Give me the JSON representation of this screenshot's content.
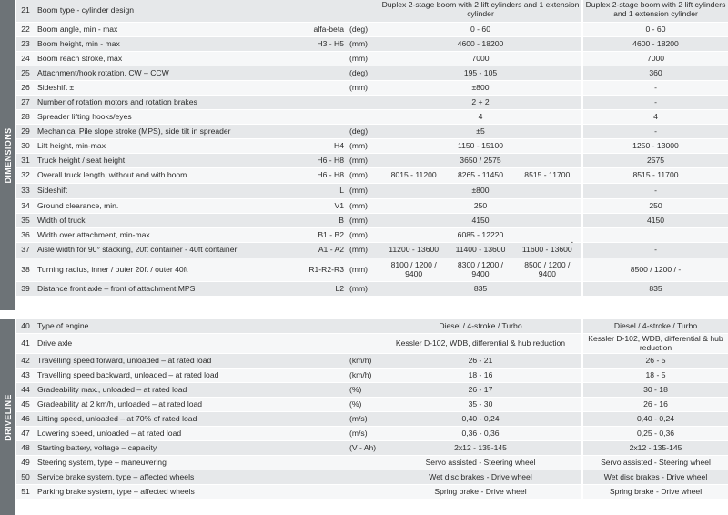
{
  "sections": [
    {
      "title": "DIMENSIONS",
      "rows": [
        {
          "num": "21",
          "label": "Boom type - cylinder design",
          "code": "",
          "unit": "",
          "v1": [
            "Duplex 2-stage boom with 2 lift cylinders and 1 extension cylinder"
          ],
          "v2": "Duplex 2-stage boom with 2 lift cylinders and 1 extension cylinder"
        },
        {
          "num": "22",
          "label": "Boom angle, min - max",
          "code": "alfa-beta",
          "unit": "(deg)",
          "v1": [
            "0 - 60"
          ],
          "v2": "0 - 60"
        },
        {
          "num": "23",
          "label": "Boom height, min - max",
          "code": "H3 - H5",
          "unit": "(mm)",
          "v1": [
            "4600 - 18200"
          ],
          "v2": "4600 - 18200"
        },
        {
          "num": "24",
          "label": "Boom reach stroke, max",
          "code": "",
          "unit": "(mm)",
          "v1": [
            "7000"
          ],
          "v2": "7000"
        },
        {
          "num": "25",
          "label": "Attachment/hook rotation, CW – CCW",
          "code": "",
          "unit": "(deg)",
          "v1": [
            "195 - 105"
          ],
          "v2": "360"
        },
        {
          "num": "26",
          "label": "Sideshift ±",
          "code": "",
          "unit": "(mm)",
          "v1": [
            "±800"
          ],
          "v2": "-"
        },
        {
          "num": "27",
          "label": "Number of rotation motors and rotation brakes",
          "code": "",
          "unit": "",
          "v1": [
            "2 + 2"
          ],
          "v2": "-"
        },
        {
          "num": "28",
          "label": "Spreader lifting hooks/eyes",
          "code": "",
          "unit": "",
          "v1": [
            "4"
          ],
          "v2": "4"
        },
        {
          "num": "29",
          "label": "Mechanical Pile slope stroke (MPS), side tilt in spreader",
          "code": "",
          "unit": "(deg)",
          "v1": [
            "±5"
          ],
          "v2": "-"
        },
        {
          "num": "30",
          "label": "Lift height, min-max",
          "code": "H4",
          "unit": "(mm)",
          "v1": [
            "1150 - 15100"
          ],
          "v2": "1250 - 13000"
        },
        {
          "num": "31",
          "label": "Truck height / seat height",
          "code": "H6 - H8",
          "unit": "(mm)",
          "v1": [
            "3650 / 2575"
          ],
          "v2": "2575"
        },
        {
          "num": "32",
          "label": "Overall truck length, without and with boom",
          "code": "H6 - H8",
          "unit": "(mm)",
          "v1": [
            "8015 - 11200",
            "8265 - 11450",
            "8515 - 11700"
          ],
          "v2": "8515 - 11700"
        },
        {
          "num": "33",
          "label": "Sideshift",
          "code": "L",
          "unit": "(mm)",
          "v1": [
            "±800"
          ],
          "v2": "-"
        },
        {
          "num": "34",
          "label": "Ground clearance, min.",
          "code": "V1",
          "unit": "(mm)",
          "v1": [
            "250"
          ],
          "v2": "250"
        },
        {
          "num": "35",
          "label": "Width of truck",
          "code": "B",
          "unit": "(mm)",
          "v1": [
            "4150"
          ],
          "v2": "4150"
        },
        {
          "num": "36",
          "label": "Width over attachment, min-max",
          "code": "B1 - B2",
          "unit": "(mm)",
          "v1": [
            "6085 - 12220"
          ],
          "v2": ""
        },
        {
          "num": "37",
          "label": "Aisle width for 90° stacking, 20ft container - 40ft container",
          "code": "A1 - A2",
          "unit": "(mm)",
          "v1": [
            "11200 - 13600",
            "11400 - 13600",
            "11600 - 13600"
          ],
          "v2": "-"
        },
        {
          "num": "38",
          "label": "Turning radius, inner / outer 20ft / outer 40ft",
          "code": "R1-R2-R3",
          "unit": "(mm)",
          "v1": [
            "8100 / 1200 / 9400",
            "8300 / 1200 / 9400",
            "8500 / 1200 / 9400"
          ],
          "v2": "8500 / 1200 / -"
        },
        {
          "num": "39",
          "label": "Distance front axle – front of attachment MPS",
          "code": "L2",
          "unit": "(mm)",
          "v1": [
            "835"
          ],
          "v2": "835"
        }
      ]
    },
    {
      "title": "DRIVELINE",
      "rows": [
        {
          "num": "40",
          "label": "Type of engine",
          "code": "",
          "unit": "",
          "v1": [
            "Diesel / 4-stroke / Turbo"
          ],
          "v2": "Diesel / 4-stroke / Turbo"
        },
        {
          "num": "41",
          "label": "Drive axle",
          "code": "",
          "unit": "",
          "v1": [
            "Kessler D-102, WDB, differential & hub reduction"
          ],
          "v2": "Kessler D-102, WDB, differential & hub reduction"
        },
        {
          "num": "42",
          "label": "Travelling speed forward, unloaded – at rated load",
          "code": "",
          "unit": "(km/h)",
          "v1": [
            "26 - 21"
          ],
          "v2": "26 - 5"
        },
        {
          "num": "43",
          "label": "Travelling speed backward, unloaded – at rated load",
          "code": "",
          "unit": "(km/h)",
          "v1": [
            "18 - 16"
          ],
          "v2": "18 - 5"
        },
        {
          "num": "44",
          "label": "Gradeability max., unloaded – at rated load",
          "code": "",
          "unit": "(%)",
          "v1": [
            "26 - 17"
          ],
          "v2": "30 - 18"
        },
        {
          "num": "45",
          "label": "Gradeability at 2 km/h, unloaded – at rated load",
          "code": "",
          "unit": "(%)",
          "v1": [
            "35 - 30"
          ],
          "v2": "26 - 16"
        },
        {
          "num": "46",
          "label": "Lifting speed, unloaded – at 70% of rated load",
          "code": "",
          "unit": "(m/s)",
          "v1": [
            "0,40 - 0,24"
          ],
          "v2": "0,40 - 0,24"
        },
        {
          "num": "47",
          "label": "Lowering speed, unloaded – at rated load",
          "code": "",
          "unit": "(m/s)",
          "v1": [
            "0,36 - 0,36"
          ],
          "v2": "0,25 - 0,36"
        },
        {
          "num": "48",
          "label": "Starting battery, voltage – capacity",
          "code": "",
          "unit": "(V - Ah)",
          "v1": [
            "2x12 - 135-145"
          ],
          "v2": "2x12 - 135-145"
        },
        {
          "num": "49",
          "label": "Steering system, type – maneuvering",
          "code": "",
          "unit": "",
          "v1": [
            "Servo assisted - Steering wheel"
          ],
          "v2": "Servo assisted - Steering wheel"
        },
        {
          "num": "50",
          "label": "Service brake system, type – affected wheels",
          "code": "",
          "unit": "",
          "v1": [
            "Wet disc brakes - Drive wheel"
          ],
          "v2": "Wet disc brakes - Drive wheel"
        },
        {
          "num": "51",
          "label": "Parking brake system, type – affected wheels",
          "code": "",
          "unit": "",
          "v1": [
            "Spring brake - Drive wheel"
          ],
          "v2": "Spring brake - Drive wheel"
        }
      ]
    }
  ],
  "stray_mark": "-"
}
